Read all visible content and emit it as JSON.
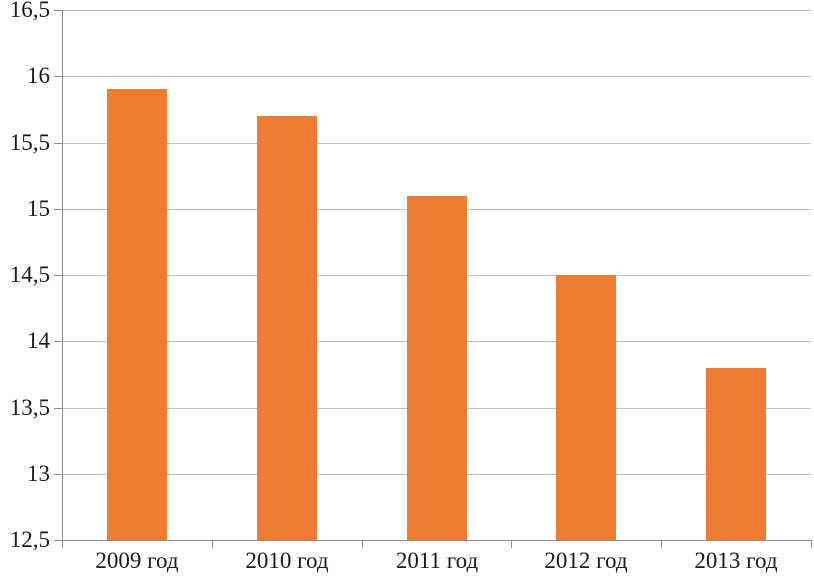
{
  "chart_data": {
    "type": "bar",
    "title": "",
    "xlabel": "",
    "ylabel": "",
    "categories": [
      "2009 год",
      "2010 год",
      "2011 год",
      "2012 год",
      "2013 год"
    ],
    "values": [
      15.9,
      15.7,
      15.1,
      14.5,
      13.8
    ],
    "series_name": "",
    "ylim": [
      12.5,
      16.5
    ],
    "ytick_step": 0.5,
    "ytick_values": [
      16.5,
      16,
      15.5,
      15,
      14.5,
      14,
      13.5,
      13,
      12.5
    ],
    "ytick_labels": [
      "16,5",
      "16",
      "15,5",
      "15",
      "14,5",
      "14",
      "13,5",
      "13",
      "12,5"
    ],
    "grid": "horizontal",
    "legend": "none",
    "decimal_separator": ",",
    "colors": {
      "bar": "#ED7D31",
      "gridline": "#BFBFBF",
      "axis": "#8C8C8C",
      "text": "#1A1A1A",
      "background": "#FFFFFF"
    }
  }
}
